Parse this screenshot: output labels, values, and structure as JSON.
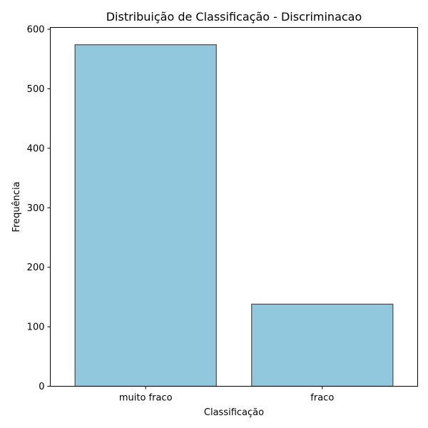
{
  "chart_data": {
    "type": "bar",
    "title": "Distribuição de Classificação - Discriminacao",
    "xlabel": "Classificação",
    "ylabel": "Frequência",
    "categories": [
      "muito fraco",
      "fraco"
    ],
    "values": [
      574,
      138
    ],
    "ylim": [
      0,
      603
    ],
    "yticks": [
      0,
      100,
      200,
      300,
      400,
      500,
      600
    ],
    "grid": false,
    "legend": "none",
    "colors": {
      "bar_fill": "#92c8dd",
      "bar_edge": "#4a4a4a",
      "axis": "#000000",
      "background": "#ffffff"
    }
  }
}
